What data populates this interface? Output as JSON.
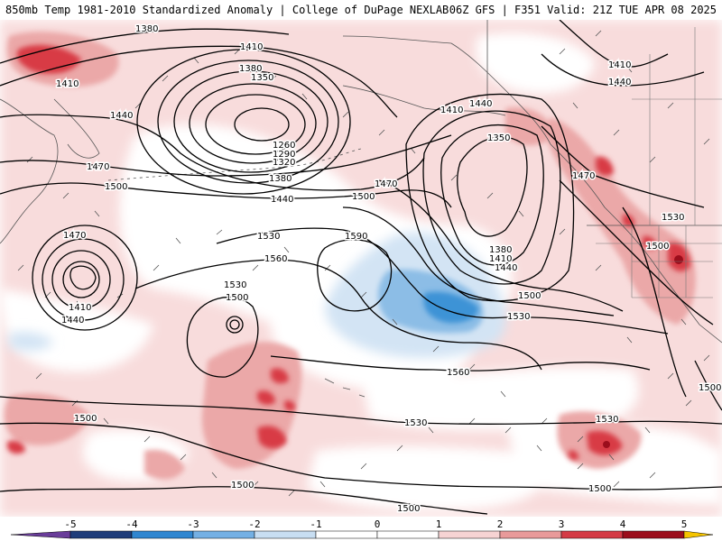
{
  "header": {
    "title": "850mb Temp 1981-2010 Standardized Anomaly | College of DuPage NEXLAB",
    "run_info": "06Z GFS | F351 Valid: 21Z TUE APR 08 2025"
  },
  "colorbar": {
    "ticks": [
      "-5",
      "-4",
      "-3",
      "-2",
      "-1",
      "0",
      "1",
      "2",
      "3",
      "4",
      "5"
    ],
    "colors": [
      "#6a3d9a",
      "#1f3d7a",
      "#2f86d0",
      "#74b0e4",
      "#c8def2",
      "#ffffff",
      "#ffffff",
      "#f6d3d3",
      "#e89a9a",
      "#d43a45",
      "#9b0e1c",
      "#f5c400"
    ]
  },
  "contour_labels": {
    "l1380_top": "1380",
    "l1410_top": "1410",
    "l1380_mid": "1380",
    "l1350_mid": "1350",
    "l1410_w": "1410",
    "l1440_w": "1440",
    "l1260": "1260",
    "l1290": "1290",
    "l1320": "1320",
    "l1380_c": "1380",
    "l1440_c": "1440",
    "l1470_w": "1470",
    "l1500_w": "1500",
    "l1410_gulf": "1410",
    "l1440_gulf": "1440",
    "l1350_gulf": "1350",
    "l1470_c": "1470",
    "l1500_c": "1500",
    "l1530_c": "1530",
    "l1590": "1590",
    "l1560_c": "1560",
    "l1380_e": "1380",
    "l1410_e": "1410",
    "l1440_e": "1440",
    "l1500_e": "1500",
    "l1530_e": "1530",
    "l1470_coast": "1470",
    "l1530_coast": "1530",
    "l1500_coast": "1500",
    "l1410_ne": "1410",
    "l1440_ne": "1440",
    "l1470_low": "1470",
    "l1410_low": "1410",
    "l1440_low": "1440",
    "l1530_sw": "1530",
    "l1500_sw": "1500",
    "l1560_s": "1560",
    "l1530_s": "1530",
    "l1530_se": "1530",
    "l1500_sw2": "1500",
    "l1500_bot": "1500",
    "l1500_bot2": "1500",
    "l1500_se2": "1500",
    "l1500_er": "1500"
  }
}
